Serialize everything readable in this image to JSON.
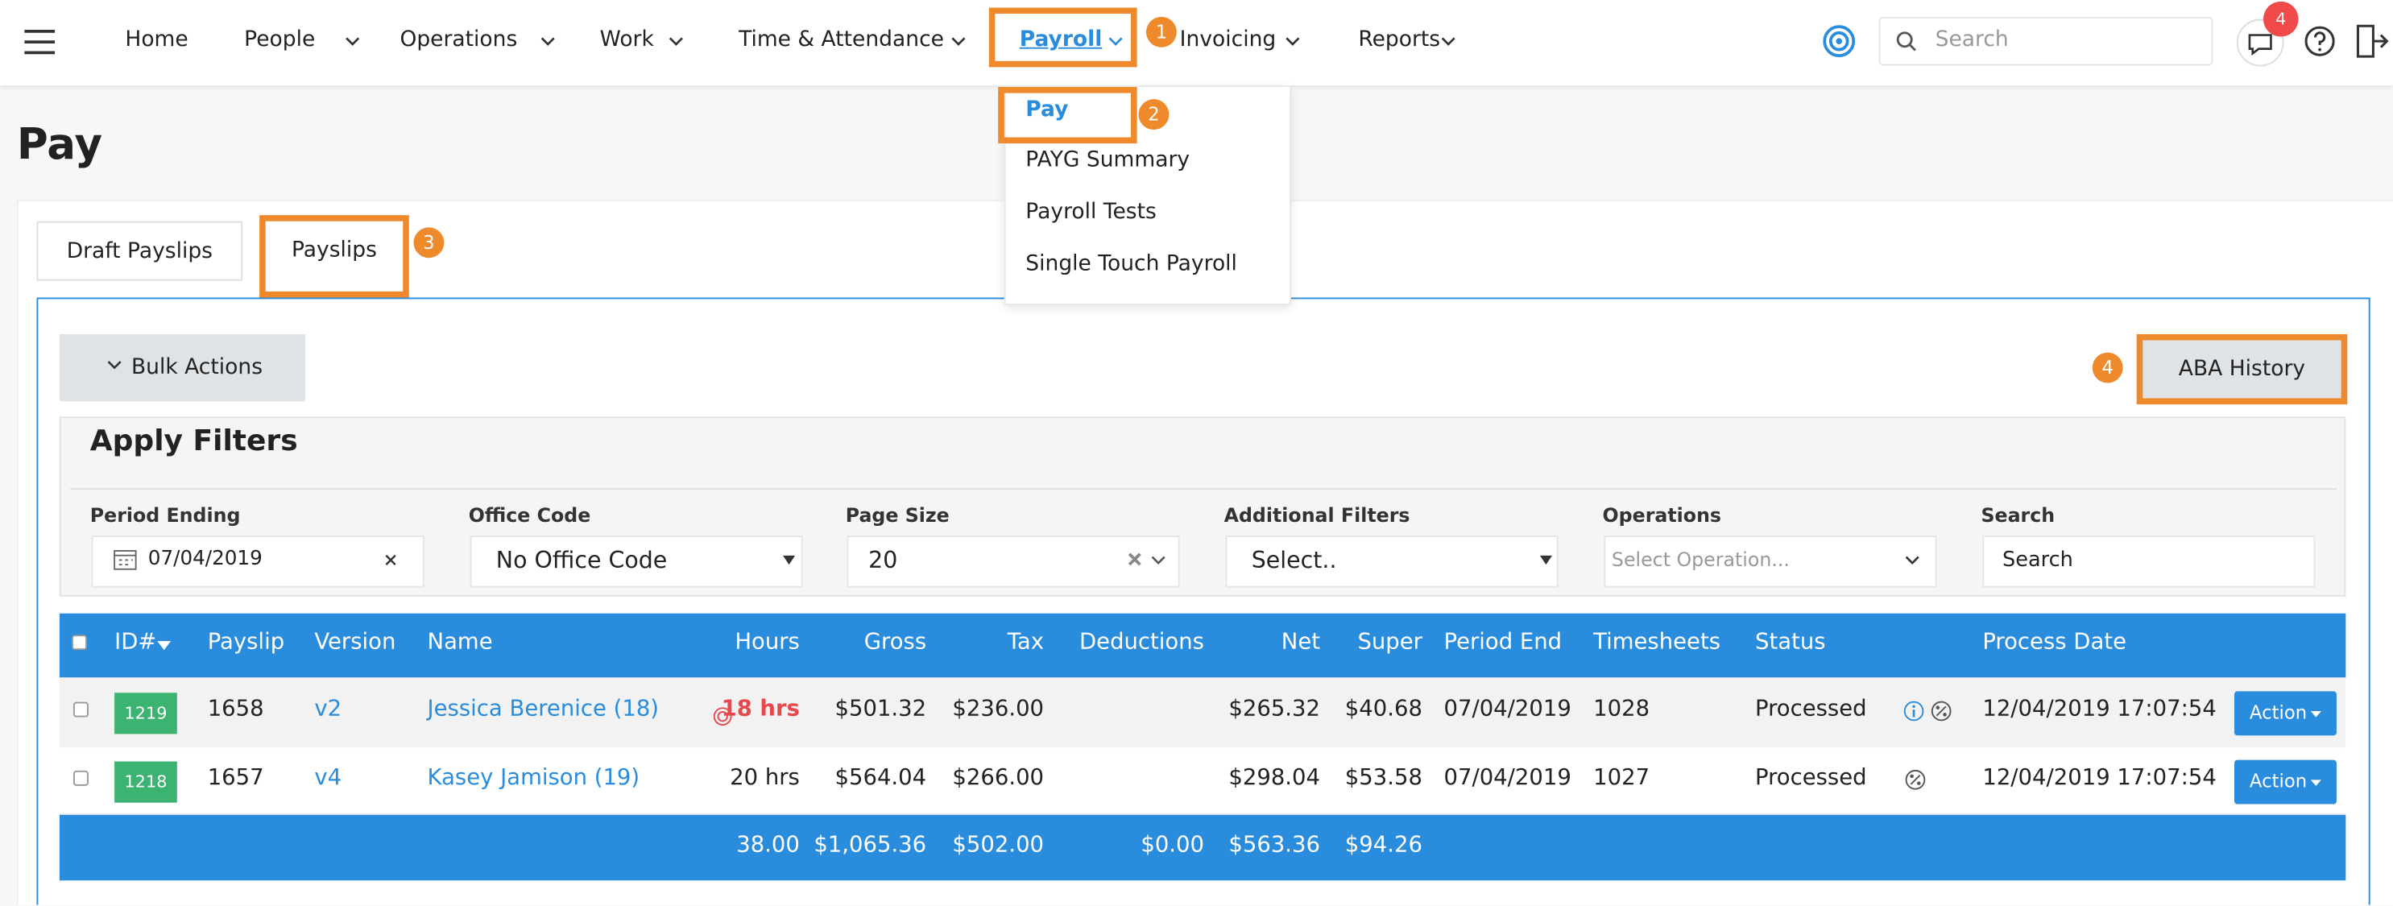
{
  "nav": {
    "items": [
      "Home",
      "People",
      "Operations",
      "Work",
      "Time & Attendance",
      "Payroll",
      "Invoicing",
      "Reports"
    ],
    "search_placeholder": "Search",
    "notification_count": 4
  },
  "dropdown": [
    "Pay",
    "PAYG Summary",
    "Payroll Tests",
    "Single Touch Payroll"
  ],
  "page_title": "Pay",
  "tabs": [
    "Draft Payslips",
    "Payslips"
  ],
  "bulk_actions": "Bulk Actions",
  "aba_history": "ABA History",
  "filters": {
    "title": "Apply Filters",
    "fields": [
      {
        "label": "Period Ending",
        "value": "07/04/2019"
      },
      {
        "label": "Office Code",
        "value": "No Office Code"
      },
      {
        "label": "Page Size",
        "value": "20"
      },
      {
        "label": "Additional Filters",
        "value": "Select.."
      },
      {
        "label": "Operations",
        "value": "Select Operation..."
      },
      {
        "label": "Search",
        "value": "Search"
      }
    ]
  },
  "table": {
    "headers": [
      "ID#",
      "Payslip",
      "Version",
      "Name",
      "Hours",
      "Gross",
      "Tax",
      "Deductions",
      "Net",
      "Super",
      "Period End",
      "Timesheets",
      "Status",
      "Process Date"
    ],
    "rows": [
      {
        "id": "1219",
        "payslip": "1658",
        "version": "v2",
        "name": "Jessica Berenice (18)",
        "hours": "18 hrs",
        "gross": "$501.32",
        "tax": "$236.00",
        "net": "$265.32",
        "super": "$40.68",
        "period_end": "07/04/2019",
        "timesheets": "1028",
        "status": "Processed",
        "process_date": "12/04/2019 17:07:54",
        "action": "Action"
      },
      {
        "id": "1218",
        "payslip": "1657",
        "version": "v4",
        "name": "Kasey Jamison (19)",
        "hours": "20 hrs",
        "gross": "$564.04",
        "tax": "$266.00",
        "net": "$298.04",
        "super": "$53.58",
        "period_end": "07/04/2019",
        "timesheets": "1027",
        "status": "Processed",
        "process_date": "12/04/2019 17:07:54",
        "action": "Action"
      }
    ],
    "totals": {
      "hours": "38.00",
      "gross": "$1,065.36",
      "tax": "$502.00",
      "deductions": "$0.00",
      "net": "$563.36",
      "super": "$94.26"
    }
  },
  "annotations": [
    "1",
    "2",
    "3",
    "4"
  ]
}
